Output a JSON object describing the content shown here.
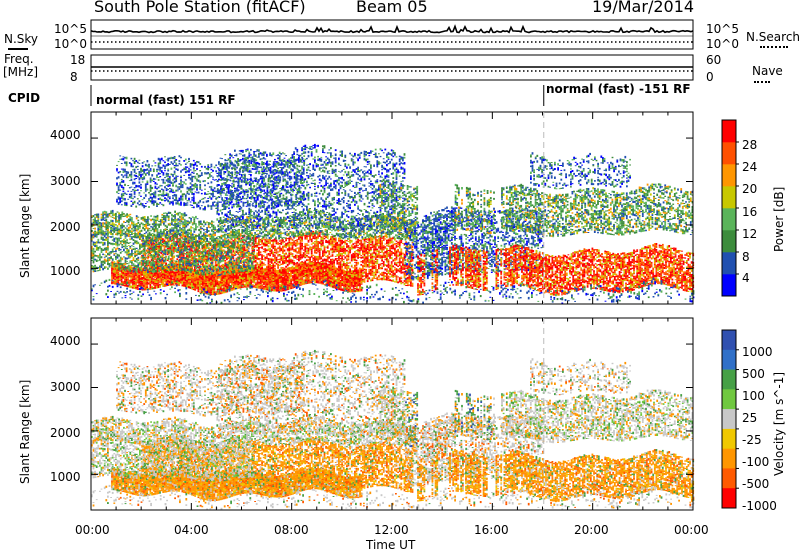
{
  "header": {
    "station": "South Pole Station (fitACF)",
    "beam": "Beam 05",
    "date": "19/Mar/2014"
  },
  "left_labels": {
    "nsky": "N.Sky",
    "freq_line1": "Freq.",
    "freq_line2": "[MHz]",
    "cpid": "CPID"
  },
  "right_labels": {
    "nsearch": "N.Search",
    "nave": "Nave"
  },
  "noise_panel": {
    "left_ticks": [
      "10^5",
      "10^0"
    ],
    "right_ticks": [
      "10^5",
      "10^0"
    ]
  },
  "freq_panel": {
    "left_ticks": [
      "18",
      "8"
    ],
    "right_ticks": [
      "60",
      "0"
    ]
  },
  "cpid_panel": {
    "mode_1": "normal (fast) 151 RF",
    "mode_2": "normal (fast) -151 RF"
  },
  "colors": {
    "power": [
      "#0000ff",
      "#2050b0",
      "#3c8c3c",
      "#5ab45a",
      "#c8c800",
      "#ff9600",
      "#ff5000",
      "#ff0000"
    ],
    "velocity": [
      "#3050b0",
      "#3070c8",
      "#46a046",
      "#70c840",
      "#c8c8c8",
      "#f0c800",
      "#ff9600",
      "#ff5a00",
      "#ff0000"
    ]
  },
  "chart_data": [
    {
      "type": "heatmap",
      "title": "",
      "xlabel": "Time UT",
      "ylabel": "Slant Range [km]",
      "xlim": [
        0,
        24
      ],
      "ylim": [
        180,
        4600
      ],
      "x_ticks": [
        "00:00",
        "04:00",
        "08:00",
        "12:00",
        "16:00",
        "20:00",
        "00:00"
      ],
      "y_ticks": [
        1000,
        2000,
        3000,
        4000
      ],
      "colorbar": {
        "label": "Power [dB]",
        "ticks": [
          4,
          8,
          12,
          16,
          20,
          24,
          28
        ],
        "range": [
          0,
          30
        ]
      },
      "mode_change_time": 18.0
    },
    {
      "type": "heatmap",
      "title": "",
      "xlabel": "Time UT",
      "ylabel": "Slant Range [km]",
      "xlim": [
        0,
        24
      ],
      "ylim": [
        180,
        4600
      ],
      "x_ticks": [
        "00:00",
        "04:00",
        "08:00",
        "12:00",
        "16:00",
        "20:00",
        "00:00"
      ],
      "y_ticks": [
        1000,
        2000,
        3000,
        4000
      ],
      "colorbar": {
        "label": "Velocity [m s^-1]",
        "ticks": [
          "1000",
          "500",
          "100",
          "25",
          "-25",
          "-100",
          "-500",
          "-1000"
        ]
      },
      "mode_change_time": 18.0
    }
  ]
}
